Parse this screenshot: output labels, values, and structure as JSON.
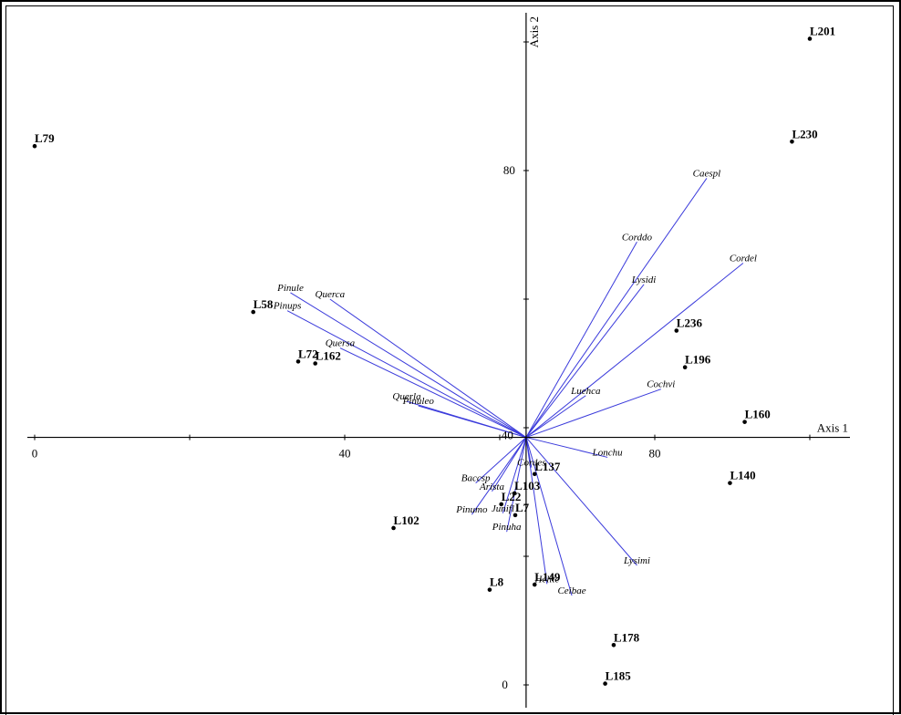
{
  "chart_data": {
    "type": "scatter",
    "title": "",
    "xlabel": "Axis 1",
    "ylabel": "Axis 2",
    "x_ticks": [
      "0",
      "40",
      "80"
    ],
    "y_ticks": [
      "0",
      "40",
      "80"
    ],
    "xlim": [
      0,
      105
    ],
    "ylim": [
      -3,
      105
    ],
    "origin": [
      63.4,
      38.5
    ],
    "sites": [
      {
        "label": "L201",
        "x": 100.0,
        "y": 100.5
      },
      {
        "label": "L230",
        "x": 97.7,
        "y": 84.5
      },
      {
        "label": "L79",
        "x": 0.0,
        "y": 83.8
      },
      {
        "label": "L58",
        "x": 28.2,
        "y": 58.0
      },
      {
        "label": "L72",
        "x": 34.0,
        "y": 50.3
      },
      {
        "label": "L162",
        "x": 36.2,
        "y": 50.0
      },
      {
        "label": "L236",
        "x": 82.8,
        "y": 55.1
      },
      {
        "label": "L196",
        "x": 83.9,
        "y": 49.4
      },
      {
        "label": "L160",
        "x": 91.6,
        "y": 40.9
      },
      {
        "label": "L140",
        "x": 89.7,
        "y": 31.4
      },
      {
        "label": "L137",
        "x": 64.5,
        "y": 32.8
      },
      {
        "label": "L103",
        "x": 61.9,
        "y": 29.8
      },
      {
        "label": "L22",
        "x": 60.2,
        "y": 28.1
      },
      {
        "label": "L7",
        "x": 62.0,
        "y": 26.4
      },
      {
        "label": "L102",
        "x": 46.3,
        "y": 24.4
      },
      {
        "label": "L8",
        "x": 58.7,
        "y": 14.8
      },
      {
        "label": "L149",
        "x": 64.5,
        "y": 15.6
      },
      {
        "label": "L178",
        "x": 74.7,
        "y": 6.2
      },
      {
        "label": "L185",
        "x": 73.6,
        "y": 0.2
      }
    ],
    "species": [
      {
        "label": "Caespl",
        "x": 86.7,
        "y": 78.8
      },
      {
        "label": "Corddo",
        "x": 77.7,
        "y": 68.9
      },
      {
        "label": "Cordel",
        "x": 91.4,
        "y": 65.6
      },
      {
        "label": "Lysidi",
        "x": 78.6,
        "y": 62.3
      },
      {
        "label": "Luehca",
        "x": 71.1,
        "y": 45.0
      },
      {
        "label": "Cochvi",
        "x": 80.8,
        "y": 46.0
      },
      {
        "label": "Lonchu",
        "x": 73.9,
        "y": 35.4
      },
      {
        "label": "Lysimi",
        "x": 77.7,
        "y": 18.6
      },
      {
        "label": "Ceibae",
        "x": 69.3,
        "y": 13.9
      },
      {
        "label": "Helite",
        "x": 66.1,
        "y": 15.7
      },
      {
        "label": "Cordes",
        "x": 64.1,
        "y": 33.8
      },
      {
        "label": "Pinule",
        "x": 33.0,
        "y": 61.0
      },
      {
        "label": "Querca",
        "x": 38.1,
        "y": 60.0
      },
      {
        "label": "Pinups",
        "x": 32.6,
        "y": 58.2
      },
      {
        "label": "Quersa",
        "x": 39.4,
        "y": 52.4
      },
      {
        "label": "Querla",
        "x": 48.0,
        "y": 44.1
      },
      {
        "label": "Pinuleo",
        "x": 49.5,
        "y": 43.4
      },
      {
        "label": "Baccsp",
        "x": 56.9,
        "y": 31.4
      },
      {
        "label": "Arista",
        "x": 59.0,
        "y": 30.1
      },
      {
        "label": "Pinumo",
        "x": 56.4,
        "y": 26.5
      },
      {
        "label": "Junifl",
        "x": 60.4,
        "y": 26.7
      },
      {
        "label": "Pinuha",
        "x": 60.9,
        "y": 23.8
      }
    ],
    "site_label_texts": [
      "L201",
      "L230",
      "L79",
      "L58",
      "L72",
      "L162",
      "L236",
      "L196",
      "L160",
      "L140",
      "L137",
      "L103",
      "L22",
      "L7",
      "L102",
      "L8",
      "L149",
      "L178",
      "L185"
    ],
    "species_label_texts": [
      "Caespl",
      "Corddo",
      "Cordel",
      "Lysidi",
      "Luehca",
      "Cochvi",
      "Lonchu",
      "Lysimi",
      "Ceibae",
      "Helite",
      "Cordes",
      "Pinule",
      "Querca",
      "Pinups",
      "Quersa",
      "Querla",
      "Pinuleo",
      "Baccsp",
      "Arista",
      "Pinumo",
      "Junifl",
      "Pinuha"
    ],
    "colors": {
      "vectors": "#3a3adb",
      "axes": "#000000",
      "points": "#000000"
    }
  }
}
